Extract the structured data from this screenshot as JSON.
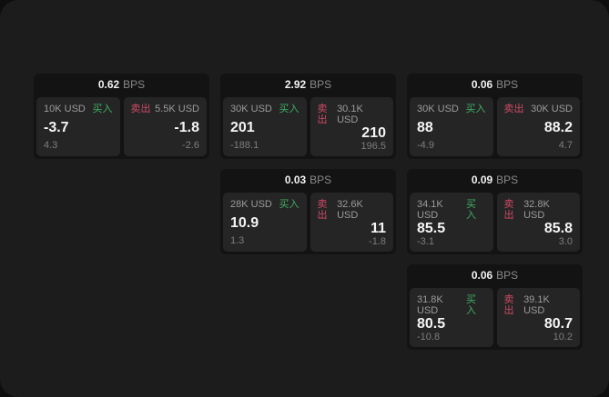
{
  "labels": {
    "bps": "BPS",
    "buy": "买入",
    "sell": "卖出"
  },
  "colors": {
    "buy": "#3fae63",
    "sell": "#cf4a66",
    "page_bg": "#1c1c1c",
    "panel_bg": "#252525",
    "card_bg": "#131313"
  },
  "cards": [
    {
      "row": 1,
      "col": 1,
      "bps": "0.62",
      "buy": {
        "amount": "10K USD",
        "value": "-3.7",
        "sub": "4.3"
      },
      "sell": {
        "amount": "5.5K USD",
        "value": "-1.8",
        "sub": "-2.6"
      }
    },
    {
      "row": 1,
      "col": 2,
      "bps": "2.92",
      "buy": {
        "amount": "30K USD",
        "value": "201",
        "sub": "-188.1"
      },
      "sell": {
        "amount": "30.1K USD",
        "value": "210",
        "sub": "196.5"
      }
    },
    {
      "row": 1,
      "col": 3,
      "bps": "0.06",
      "buy": {
        "amount": "30K USD",
        "value": "88",
        "sub": "-4.9"
      },
      "sell": {
        "amount": "30K USD",
        "value": "88.2",
        "sub": "4.7"
      }
    },
    {
      "row": 2,
      "col": 2,
      "bps": "0.03",
      "buy": {
        "amount": "28K USD",
        "value": "10.9",
        "sub": "1.3"
      },
      "sell": {
        "amount": "32.6K USD",
        "value": "11",
        "sub": "-1.8"
      }
    },
    {
      "row": 2,
      "col": 3,
      "bps": "0.09",
      "buy": {
        "amount": "34.1K USD",
        "value": "85.5",
        "sub": "-3.1"
      },
      "sell": {
        "amount": "32.8K USD",
        "value": "85.8",
        "sub": "3.0"
      }
    },
    {
      "row": 3,
      "col": 3,
      "bps": "0.06",
      "buy": {
        "amount": "31.8K USD",
        "value": "80.5",
        "sub": "-10.8"
      },
      "sell": {
        "amount": "39.1K USD",
        "value": "80.7",
        "sub": "10.2"
      }
    }
  ]
}
